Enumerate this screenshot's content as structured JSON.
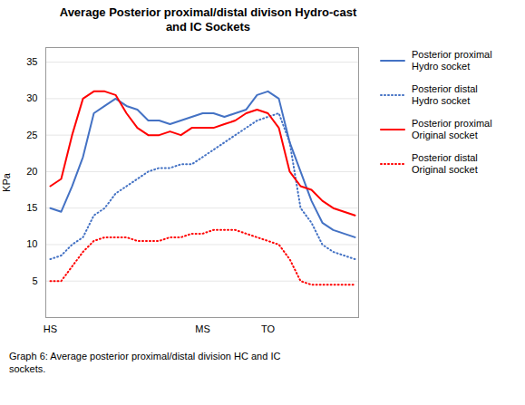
{
  "chart_data": {
    "type": "line",
    "title": "Average Posterior proximal/distal divison Hydro-cast\nand IC Sockets",
    "ylabel": "KPa",
    "caption": "Graph 6: Average posterior proximal/distal division HC and IC\nsockets.",
    "categories": [
      "HS",
      null,
      null,
      null,
      null,
      null,
      null,
      null,
      null,
      null,
      null,
      null,
      null,
      null,
      "MS",
      null,
      null,
      null,
      null,
      null,
      "TO",
      null,
      null,
      null,
      null,
      null,
      null,
      null,
      null
    ],
    "series": [
      {
        "name": "Posterior proximal\nHydro socket",
        "color": "#4472C4",
        "line_style": "solid",
        "values": [
          15,
          14.5,
          18,
          22,
          28,
          29,
          30,
          29,
          28.5,
          27,
          27,
          26.5,
          27,
          27.5,
          28,
          28,
          27.5,
          28,
          28.5,
          30.5,
          31,
          30,
          24,
          20,
          16,
          13,
          12,
          11.5,
          11
        ]
      },
      {
        "name": "Posterior distal\nHydro socket",
        "color": "#4472C4",
        "line_style": "dotted",
        "values": [
          8,
          8.5,
          10,
          11,
          14,
          15,
          17,
          18,
          19,
          20,
          20.5,
          20.5,
          21,
          21,
          22,
          23,
          24,
          25,
          26,
          27,
          27.5,
          28,
          24,
          15,
          13,
          10,
          9,
          8.5,
          8
        ]
      },
      {
        "name": "Posterior proximal\nOriginal socket",
        "color": "#FF0000",
        "line_style": "solid",
        "values": [
          18,
          19,
          25,
          30,
          31,
          31,
          30.5,
          28,
          26,
          25,
          25,
          25.5,
          25,
          26,
          26,
          26,
          26.5,
          27,
          28,
          28.5,
          28,
          26,
          20,
          18,
          17.5,
          16,
          15,
          14.5,
          14
        ]
      },
      {
        "name": "Posterior distal\nOriginal socket",
        "color": "#FF0000",
        "line_style": "dotted",
        "values": [
          5,
          5,
          7,
          9,
          10.5,
          11,
          11,
          11,
          10.5,
          10.5,
          10.5,
          11,
          11,
          11.5,
          11.5,
          12,
          12,
          12,
          11.5,
          11,
          10.5,
          10,
          8,
          5,
          4.5,
          4.5,
          4.5,
          4.5,
          4.5
        ]
      }
    ],
    "ylim": [
      0,
      37
    ],
    "yticks": [
      5,
      10,
      15,
      20,
      25,
      30,
      35
    ],
    "grid": true,
    "legend": "right"
  }
}
